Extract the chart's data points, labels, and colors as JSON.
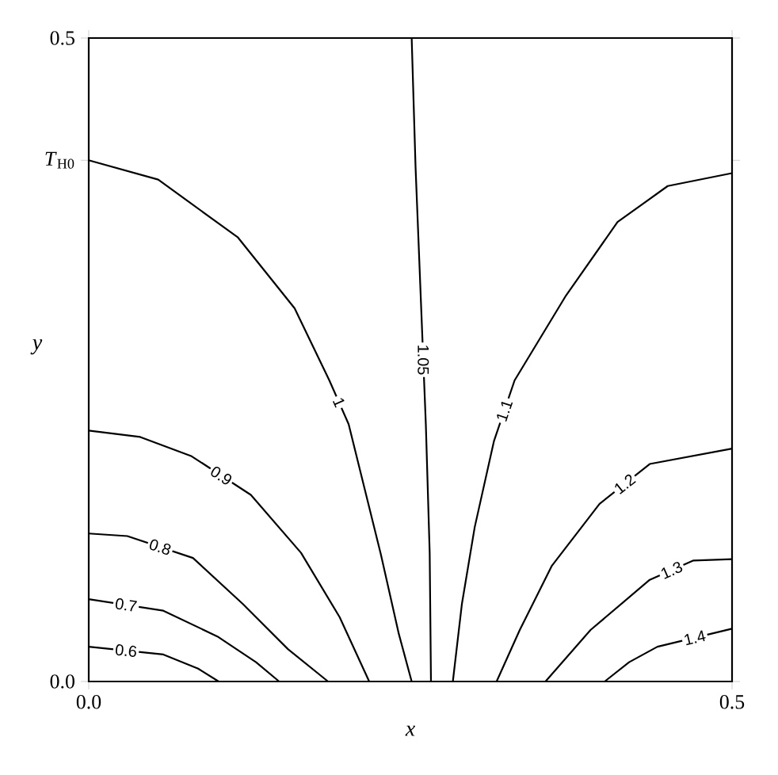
{
  "chart_data": {
    "type": "line",
    "xlabel": "*x*",
    "ylabel": "*y*",
    "xlim": [
      0,
      0.5
    ],
    "ylim": [
      0,
      0.5
    ],
    "xticks": [
      {
        "value": 0,
        "label": "0.0"
      },
      {
        "value": 0.5,
        "label": "0.5"
      }
    ],
    "yticks": [
      {
        "value": 0,
        "label": "0.0"
      },
      {
        "value": 0.405,
        "label": "*T*$_{H0}$"
      },
      {
        "value": 0.5,
        "label": "0.5"
      }
    ],
    "grid": false,
    "line_style": "solid",
    "marker": "none",
    "series": [
      {
        "name": "0.6",
        "color": "#000000",
        "x": [
          0,
          0.058,
          0.085,
          0.101
        ],
        "values": [
          0.027,
          0.021,
          0.01,
          0
        ]
      },
      {
        "name": "0.7",
        "color": "#000000",
        "x": [
          0,
          0.058,
          0.1,
          0.13,
          0.148
        ],
        "values": [
          0.064,
          0.055,
          0.035,
          0.015,
          0
        ]
      },
      {
        "name": "0.8",
        "color": "#000000",
        "x": [
          0,
          0.03,
          0.081,
          0.12,
          0.155,
          0.186
        ],
        "values": [
          0.115,
          0.113,
          0.096,
          0.06,
          0.025,
          0
        ]
      },
      {
        "name": "0.9",
        "color": "#000000",
        "x": [
          0,
          0.04,
          0.08,
          0.126,
          0.165,
          0.195,
          0.218
        ],
        "values": [
          0.195,
          0.19,
          0.175,
          0.145,
          0.1,
          0.05,
          0
        ]
      },
      {
        "name": "1",
        "color": "#000000",
        "x": [
          0,
          0.054,
          0.116,
          0.16,
          0.187,
          0.202,
          0.227,
          0.241,
          0.251
        ],
        "values": [
          0.405,
          0.39,
          0.345,
          0.29,
          0.234,
          0.2,
          0.099,
          0.037,
          0
        ]
      },
      {
        "name": "1.05",
        "color": "#000000",
        "x": [
          0.251,
          0.254,
          0.258,
          0.262,
          0.265,
          0.266
        ],
        "values": [
          0.5,
          0.4,
          0.3,
          0.2,
          0.1,
          0
        ]
      },
      {
        "name": "1.1",
        "color": "#000000",
        "x": [
          0.5,
          0.45,
          0.411,
          0.371,
          0.331,
          0.315,
          0.3,
          0.29,
          0.283
        ],
        "values": [
          0.395,
          0.385,
          0.357,
          0.3,
          0.234,
          0.187,
          0.12,
          0.06,
          0
        ]
      },
      {
        "name": "1.2",
        "color": "#000000",
        "x": [
          0.5,
          0.436,
          0.397,
          0.36,
          0.335,
          0.317
        ],
        "values": [
          0.181,
          0.169,
          0.138,
          0.09,
          0.04,
          0
        ]
      },
      {
        "name": "1.3",
        "color": "#000000",
        "x": [
          0.5,
          0.47,
          0.436,
          0.39,
          0.355
        ],
        "values": [
          0.095,
          0.094,
          0.079,
          0.04,
          0
        ]
      },
      {
        "name": "1.4",
        "color": "#000000",
        "x": [
          0.5,
          0.442,
          0.42,
          0.401
        ],
        "values": [
          0.041,
          0.027,
          0.015,
          0
        ]
      }
    ]
  }
}
